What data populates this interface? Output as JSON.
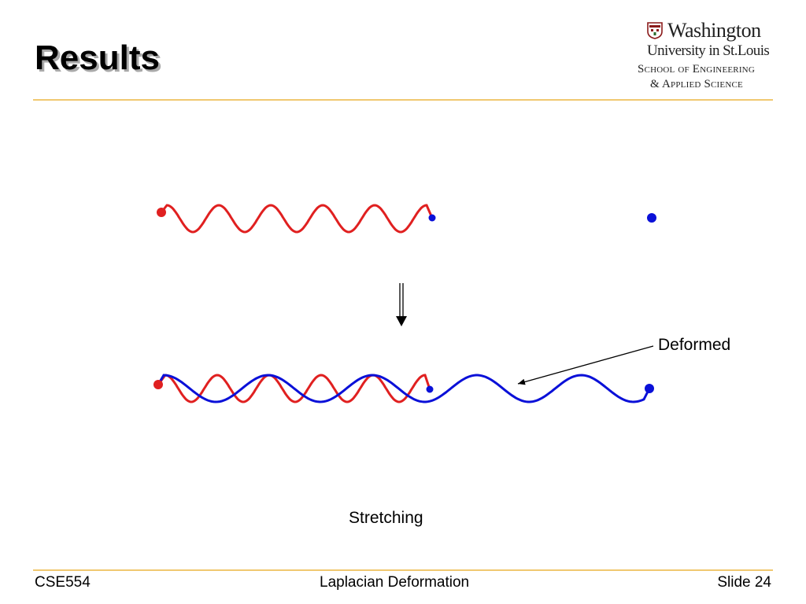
{
  "slide": {
    "title": "Results"
  },
  "logo": {
    "line1": "Washington",
    "line2": "University in St.Louis",
    "line3": "School of Engineering",
    "line4": "& Applied Science"
  },
  "diagram": {
    "annotation_label": "Deformed",
    "caption": "Stretching",
    "colors": {
      "original_curve": "#e02020",
      "deformed_curve": "#0a10d8",
      "arrow": "#000000"
    }
  },
  "footer": {
    "course": "CSE554",
    "topic": "Laplacian Deformation",
    "slide_number": "Slide 24"
  }
}
